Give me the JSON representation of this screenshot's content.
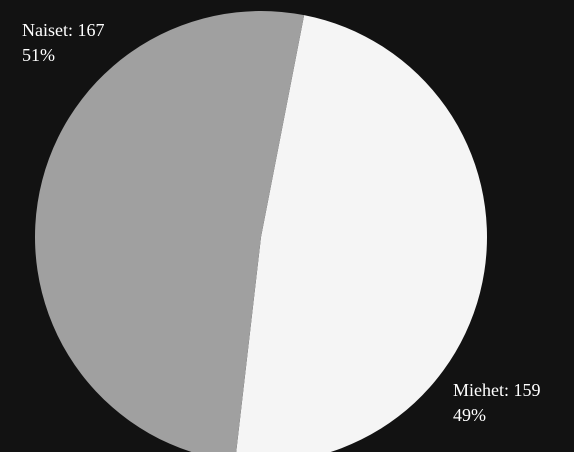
{
  "chart_data": {
    "type": "pie",
    "slices": [
      {
        "label": "Miehet",
        "value": 159,
        "percent": "49%",
        "color": "#f5f5f5"
      },
      {
        "label": "Naiset",
        "value": 167,
        "percent": "51%",
        "color": "#a0a0a0"
      }
    ],
    "background": "#121212",
    "label_color": "#ffffff",
    "labels": {
      "naiset_line1": "Naiset: 167",
      "naiset_line2": "51%",
      "miehet_line1": "Miehet: 159",
      "miehet_line2": "49%"
    }
  }
}
